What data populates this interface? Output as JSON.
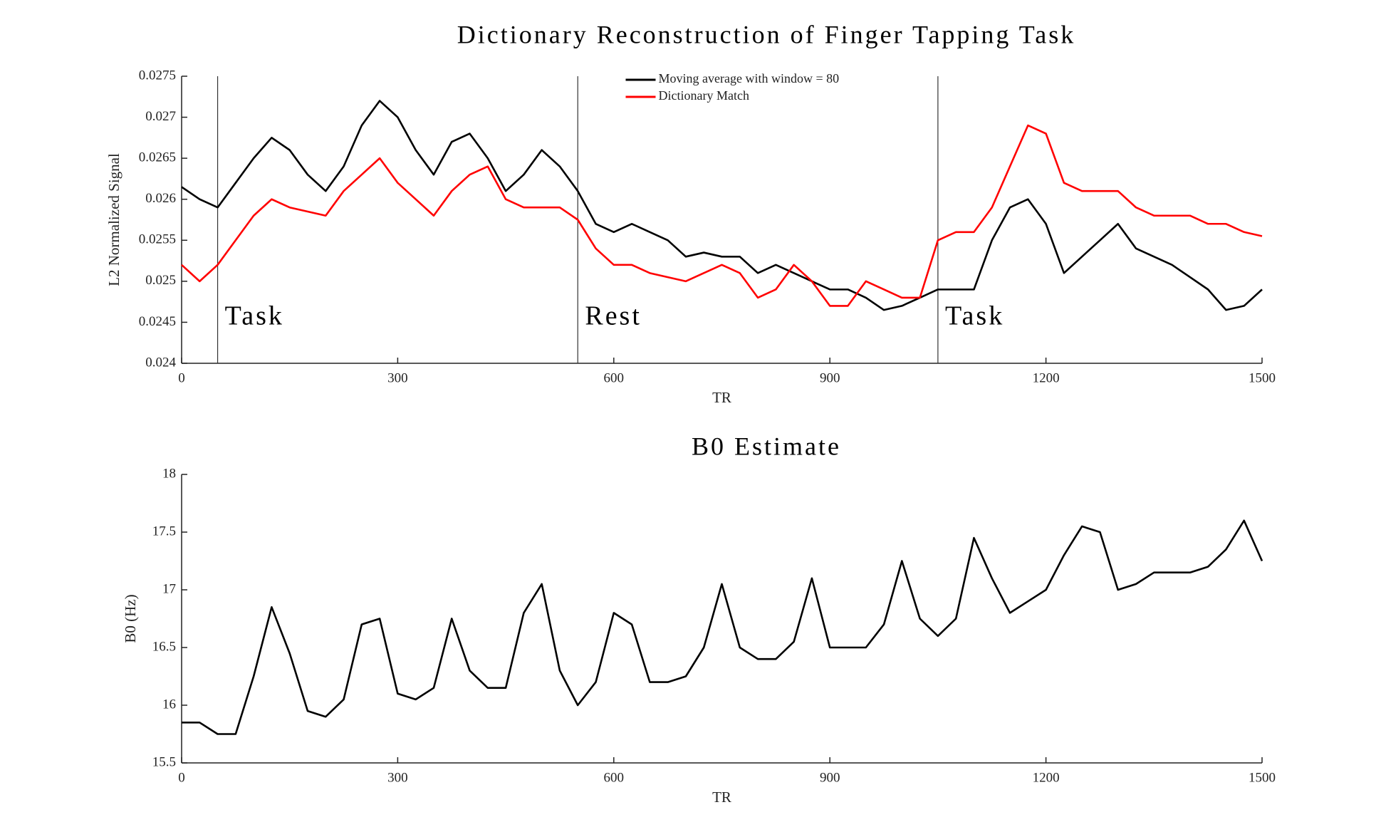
{
  "chart_data": [
    {
      "type": "line",
      "title": "Dictionary Reconstruction of Finger Tapping Task",
      "xlabel": "TR",
      "ylabel": "L2 Normalized Signal",
      "x": [
        0,
        25,
        50,
        75,
        100,
        125,
        150,
        175,
        200,
        225,
        250,
        275,
        300,
        325,
        350,
        375,
        400,
        425,
        450,
        475,
        500,
        525,
        550,
        575,
        600,
        625,
        650,
        675,
        700,
        725,
        750,
        775,
        800,
        825,
        850,
        875,
        900,
        925,
        950,
        975,
        1000,
        1025,
        1050,
        1075,
        1100,
        1125,
        1150,
        1175,
        1200,
        1225,
        1250,
        1275,
        1300,
        1325,
        1350,
        1375,
        1400,
        1425,
        1450,
        1475,
        1500
      ],
      "series": [
        {
          "name": "Moving average with window = 80",
          "color": "#000000",
          "values": [
            0.02615,
            0.026,
            0.0259,
            0.0262,
            0.0265,
            0.02675,
            0.0266,
            0.0263,
            0.0261,
            0.0264,
            0.0269,
            0.0272,
            0.027,
            0.0266,
            0.0263,
            0.0267,
            0.0268,
            0.0265,
            0.0261,
            0.0263,
            0.0266,
            0.0264,
            0.0261,
            0.0257,
            0.0256,
            0.0257,
            0.0256,
            0.0255,
            0.0253,
            0.02535,
            0.0253,
            0.0253,
            0.0251,
            0.0252,
            0.0251,
            0.025,
            0.0249,
            0.0249,
            0.0248,
            0.02465,
            0.0247,
            0.0248,
            0.0249,
            0.0249,
            0.0249,
            0.0255,
            0.0259,
            0.026,
            0.0257,
            0.0251,
            0.0253,
            0.0255,
            0.0257,
            0.0254,
            0.0253,
            0.0252,
            0.02505,
            0.0249,
            0.02465,
            0.0247,
            0.0249
          ]
        },
        {
          "name": "Dictionary Match",
          "color": "#ff0000",
          "values": [
            0.0252,
            0.025,
            0.0252,
            0.0255,
            0.0258,
            0.026,
            0.0259,
            0.02585,
            0.0258,
            0.0261,
            0.0263,
            0.0265,
            0.0262,
            0.026,
            0.0258,
            0.0261,
            0.0263,
            0.0264,
            0.026,
            0.0259,
            0.0259,
            0.0259,
            0.02575,
            0.0254,
            0.0252,
            0.0252,
            0.0251,
            0.02505,
            0.025,
            0.0251,
            0.0252,
            0.0251,
            0.0248,
            0.0249,
            0.0252,
            0.025,
            0.0247,
            0.0247,
            0.025,
            0.0249,
            0.0248,
            0.0248,
            0.0255,
            0.0256,
            0.0256,
            0.0259,
            0.0264,
            0.0269,
            0.0268,
            0.0262,
            0.0261,
            0.0261,
            0.0261,
            0.0259,
            0.0258,
            0.0258,
            0.0258,
            0.0257,
            0.0257,
            0.0256,
            0.02555
          ]
        }
      ],
      "xlim": [
        0,
        1500
      ],
      "xticks": [
        0,
        300,
        600,
        900,
        1200,
        1500
      ],
      "ylim": [
        0.024,
        0.0275
      ],
      "yticks": [
        0.024,
        0.0245,
        0.025,
        0.0255,
        0.026,
        0.0265,
        0.027,
        0.0275
      ],
      "vlines": [
        50,
        550,
        1050
      ],
      "annotations": [
        {
          "text": "Task",
          "x": 60,
          "y": 0.02455
        },
        {
          "text": "Rest",
          "x": 560,
          "y": 0.02455
        },
        {
          "text": "Task",
          "x": 1060,
          "y": 0.02455
        }
      ],
      "legend": "upper center"
    },
    {
      "type": "line",
      "title": "B0 Estimate",
      "xlabel": "TR",
      "ylabel": "B0 (Hz)",
      "x": [
        0,
        25,
        50,
        75,
        100,
        125,
        150,
        175,
        200,
        225,
        250,
        275,
        300,
        325,
        350,
        375,
        400,
        425,
        450,
        475,
        500,
        525,
        550,
        575,
        600,
        625,
        650,
        675,
        700,
        725,
        750,
        775,
        800,
        825,
        850,
        875,
        900,
        925,
        950,
        975,
        1000,
        1025,
        1050,
        1075,
        1100,
        1125,
        1150,
        1175,
        1200,
        1225,
        1250,
        1275,
        1300,
        1325,
        1350,
        1375,
        1400,
        1425,
        1450,
        1475,
        1500
      ],
      "series": [
        {
          "color": "#000000",
          "values": [
            15.85,
            15.85,
            15.75,
            15.75,
            16.25,
            16.85,
            16.45,
            15.95,
            15.9,
            16.05,
            16.7,
            16.75,
            16.1,
            16.05,
            16.15,
            16.75,
            16.3,
            16.15,
            16.15,
            16.8,
            17.05,
            16.3,
            16.0,
            16.2,
            16.8,
            16.7,
            16.2,
            16.2,
            16.25,
            16.5,
            17.05,
            16.5,
            16.4,
            16.4,
            16.55,
            17.1,
            16.5,
            16.5,
            16.5,
            16.7,
            17.25,
            16.75,
            16.6,
            16.75,
            17.45,
            17.1,
            16.8,
            16.9,
            17.0,
            17.3,
            17.55,
            17.5,
            17.0,
            17.05,
            17.15,
            17.15,
            17.15,
            17.2,
            17.35,
            17.6,
            17.25
          ]
        }
      ],
      "xlim": [
        0,
        1500
      ],
      "xticks": [
        0,
        300,
        600,
        900,
        1200,
        1500
      ],
      "ylim": [
        15.5,
        18
      ],
      "yticks": [
        15.5,
        16,
        16.5,
        17,
        17.5,
        18
      ]
    }
  ]
}
